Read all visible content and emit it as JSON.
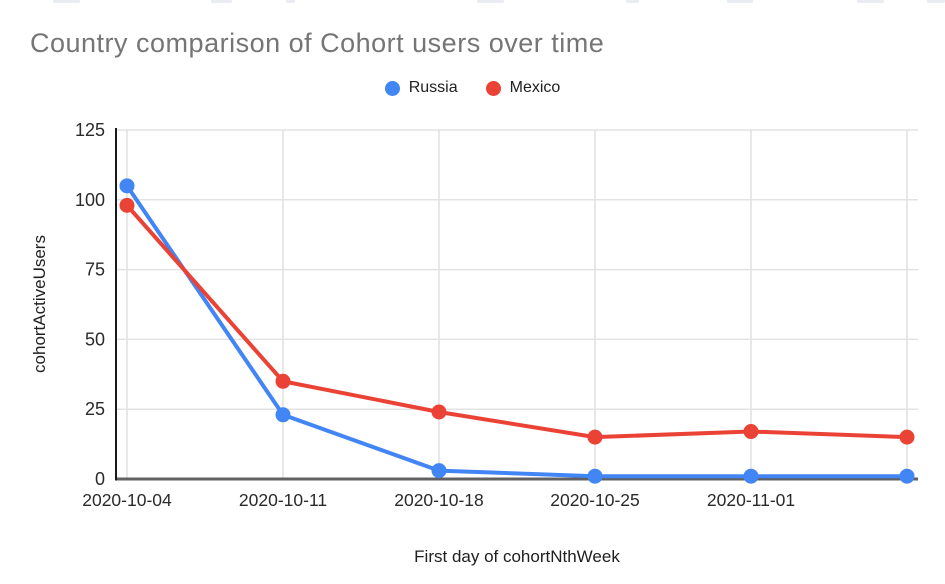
{
  "title": "Country comparison of Cohort users over time",
  "legend": {
    "items": [
      {
        "label": "Russia",
        "color": "#4285F4"
      },
      {
        "label": "Mexico",
        "color": "#EA4335"
      }
    ]
  },
  "colors": {
    "russia_blue": "#4285F4",
    "mexico_red": "#EA4335",
    "title_gray": "#757575",
    "gridline": "#e3e3e3",
    "x_axis_line": "#616161",
    "y_axis_line": "#1a1a1a",
    "tick_text": "#2a2a2a"
  },
  "chart_data": {
    "type": "line",
    "title": "Country comparison of Cohort users over time",
    "xlabel": "First day of cohortNthWeek",
    "ylabel": "cohortActiveUsers",
    "x_tick_labels": [
      "2020-10-04",
      "2020-10-11",
      "2020-10-18",
      "2020-10-25",
      "2020-11-01"
    ],
    "num_points": 6,
    "y_ticks": [
      0,
      25,
      50,
      75,
      100,
      125
    ],
    "ylim": [
      0,
      125
    ],
    "grid": true,
    "legend_position": "top",
    "series": [
      {
        "name": "Russia",
        "color": "#4285F4",
        "values": [
          105,
          23,
          3,
          1,
          1,
          1
        ]
      },
      {
        "name": "Mexico",
        "color": "#EA4335",
        "values": [
          98,
          35,
          24,
          15,
          17,
          15
        ]
      }
    ]
  }
}
